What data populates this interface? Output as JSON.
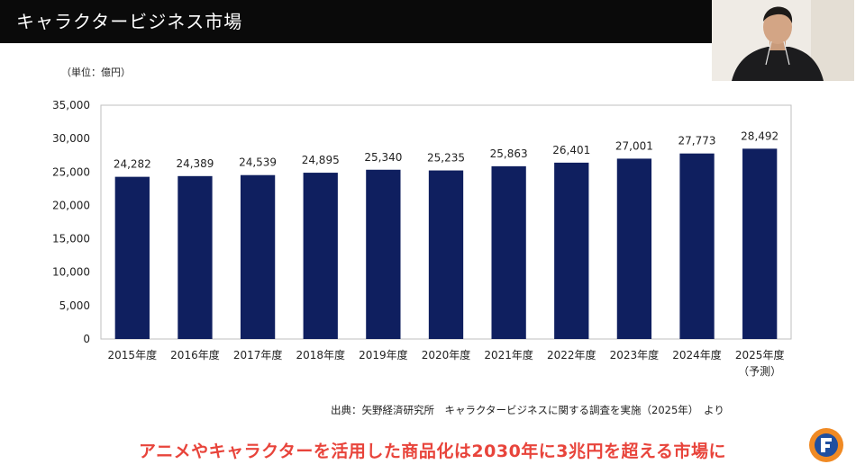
{
  "slide": {
    "title": "キャラクタービジネス市場",
    "unit": "（単位：億円）",
    "source": "出典：矢野経済研究所　キャラクタービジネスに関する調査を実施（2025年）　より",
    "caption": "アニメやキャラクターを活用した商品化は2030年に3兆円を超える市場に",
    "logo_letter": "F"
  },
  "colors": {
    "bar": "#0f1f5f",
    "caption": "#e8443b",
    "header": "#0a0a0a",
    "logo_outer": "#f08a24",
    "logo_inner": "#1f4fa0"
  },
  "chart_data": {
    "type": "bar",
    "categories": [
      "2015年度",
      "2016年度",
      "2017年度",
      "2018年度",
      "2019年度",
      "2020年度",
      "2021年度",
      "2022年度",
      "2023年度",
      "2024年度",
      "2025年度"
    ],
    "category_notes": [
      "",
      "",
      "",
      "",
      "",
      "",
      "",
      "",
      "",
      "",
      "（予測）"
    ],
    "values": [
      24282,
      24389,
      24539,
      24895,
      25340,
      25235,
      25863,
      26401,
      27001,
      27773,
      28492
    ],
    "data_labels": [
      "24,282",
      "24,389",
      "24,539",
      "24,895",
      "25,340",
      "25,235",
      "25,863",
      "26,401",
      "27,001",
      "27,773",
      "28,492"
    ],
    "yticks": [
      "0",
      "5,000",
      "10,000",
      "15,000",
      "20,000",
      "25,000",
      "30,000",
      "35,000"
    ],
    "ylim": [
      0,
      35000
    ],
    "grid": false,
    "legend": "none"
  }
}
